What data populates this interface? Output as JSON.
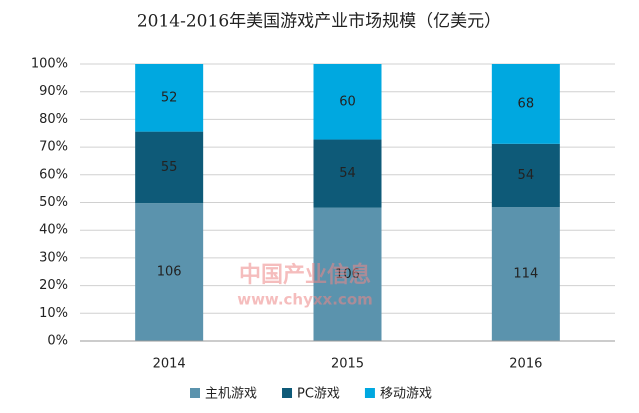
{
  "chart_data": {
    "type": "bar",
    "stacked": "percent",
    "title": "2014-2016年美国游戏产业市场规模（亿美元）",
    "categories": [
      "2014",
      "2015",
      "2016"
    ],
    "series": [
      {
        "name": "主机游戏",
        "color": "#5b93ad",
        "values": [
          106,
          106,
          114
        ]
      },
      {
        "name": "PC游戏",
        "color": "#0e5a78",
        "values": [
          55,
          54,
          54
        ]
      },
      {
        "name": "移动游戏",
        "color": "#00a8e0",
        "values": [
          52,
          60,
          68
        ]
      }
    ],
    "ylim": [
      0,
      100
    ],
    "yticks": [
      {
        "value": 0,
        "label": "0%"
      },
      {
        "value": 10,
        "label": "10%"
      },
      {
        "value": 20,
        "label": "20%"
      },
      {
        "value": 30,
        "label": "30%"
      },
      {
        "value": 40,
        "label": "40%"
      },
      {
        "value": 50,
        "label": "50%"
      },
      {
        "value": 60,
        "label": "60%"
      },
      {
        "value": 70,
        "label": "70%"
      },
      {
        "value": 80,
        "label": "80%"
      },
      {
        "value": 90,
        "label": "90%"
      },
      {
        "value": 100,
        "label": "100%"
      }
    ],
    "grid": true,
    "legend": "bottom",
    "watermark": [
      "中国产业信息",
      "www.chyxx.com"
    ]
  }
}
